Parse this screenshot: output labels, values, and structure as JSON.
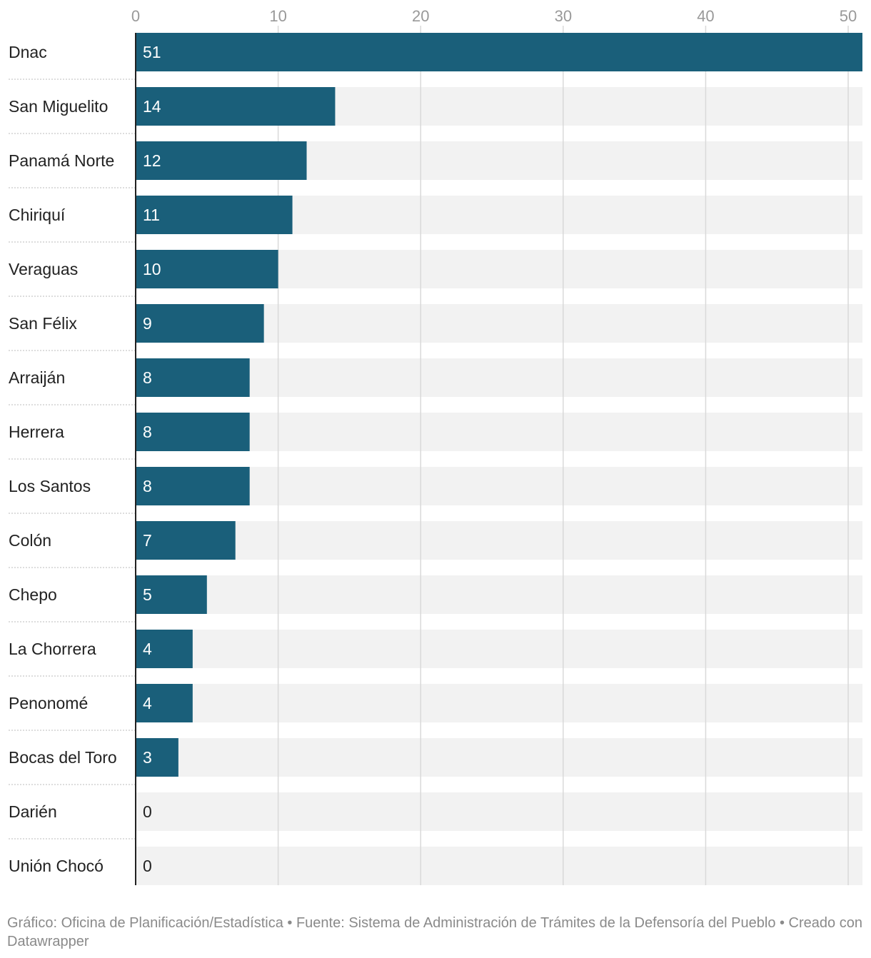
{
  "chart_data": {
    "type": "bar",
    "orientation": "horizontal",
    "categories": [
      "Dnac",
      "San Miguelito",
      "Panamá Norte",
      "Chiriquí",
      "Veraguas",
      "San Félix",
      "Arraiján",
      "Herrera",
      "Los Santos",
      "Colón",
      "Chepo",
      "La Chorrera",
      "Penonomé",
      "Bocas del Toro",
      "Darién",
      "Unión Chocó"
    ],
    "values": [
      51,
      14,
      12,
      11,
      10,
      9,
      8,
      8,
      8,
      7,
      5,
      4,
      4,
      3,
      0,
      0
    ],
    "value_labels": [
      "51",
      "14",
      "12",
      "11",
      "10",
      "9",
      "8",
      "8",
      "8",
      "7",
      "5",
      "4",
      "4",
      "3",
      "0",
      "0"
    ],
    "xticks": [
      0,
      10,
      20,
      30,
      40,
      50
    ],
    "xtick_labels": [
      "0",
      "10",
      "20",
      "30",
      "40",
      "50"
    ],
    "xlim": [
      0,
      51
    ],
    "grid": true,
    "bar_color": "#1a5f7a",
    "track_color": "#f2f2f2",
    "title": "",
    "xlabel": "",
    "ylabel": ""
  },
  "footer": {
    "text": "Gráfico: Oficina de Planificación/Estadística • Fuente: Sistema de Administración de Trámites de la Defensoría del Pueblo • Creado con Datawrapper"
  }
}
